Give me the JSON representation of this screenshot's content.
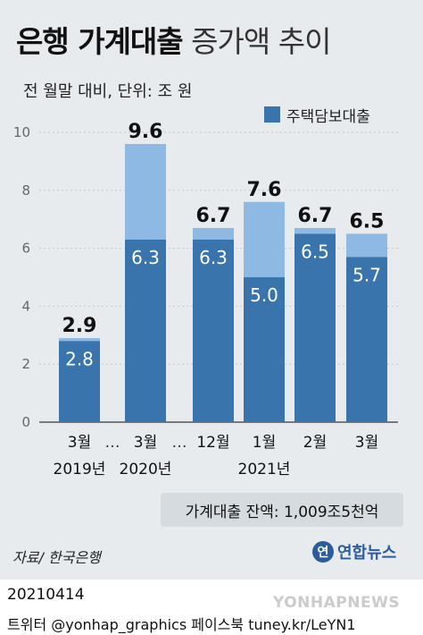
{
  "title": {
    "bold": "은행 가계대출",
    "normal": "증가액 추이"
  },
  "subtitle": "전 월말 대비, 단위: 조 원",
  "colors": {
    "base": "#3a74ad",
    "top": "#8db9e2",
    "axis": "#555555",
    "grid": "#c3c8cd"
  },
  "chart_data": {
    "type": "bar",
    "stacked": true,
    "categories": [
      "3월",
      "3월",
      "12월",
      "1월",
      "2월",
      "3월"
    ],
    "year_labels": [
      "2019년",
      "2020년",
      "",
      "2021년",
      "",
      ""
    ],
    "ellipsis": [
      "…",
      "…"
    ],
    "totals": [
      2.9,
      9.6,
      6.7,
      7.6,
      6.7,
      6.5
    ],
    "series": [
      {
        "name": "주택담보대출",
        "values": [
          2.8,
          6.3,
          6.3,
          5.0,
          6.5,
          5.7
        ]
      }
    ],
    "y_ticks": [
      0,
      2,
      4,
      6,
      8,
      10
    ],
    "ylim": [
      0,
      10.8
    ],
    "legend_position": "top-right"
  },
  "balance_note": "가계대출 잔액: 1,009조5천억",
  "source": "자료/ 한국은행",
  "logo": {
    "mark": "연",
    "text": "연합뉴스"
  },
  "date": "20210414",
  "credit": "트위터 @yonhap_graphics  페이스북 tuney.kr/LeYN1",
  "watermark": "YONHAPNEWS"
}
